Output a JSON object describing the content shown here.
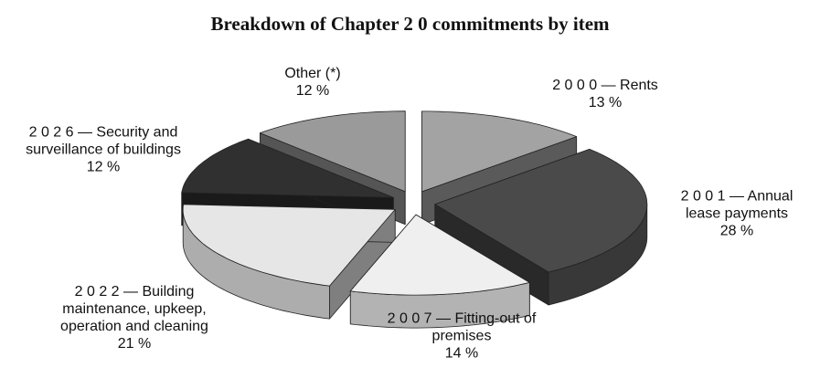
{
  "chart_data": {
    "type": "pie3d",
    "title": "Breakdown of Chapter 2 0 commitments by item",
    "categories": [
      "2 0 0 0 — Rents",
      "2 0 0 1 — Annual lease payments",
      "2 0 0 7 — Fitting-out of premises",
      "2 0 2 2 — Building maintenance, upkeep, operation and cleaning",
      "2 0 2 6 — Security and surveillance of buildings",
      "Other (*)"
    ],
    "values": [
      13,
      28,
      14,
      21,
      12,
      12
    ],
    "value_labels": [
      "13 %",
      "28 %",
      "14 %",
      "21 %",
      "12 %",
      "12 %"
    ],
    "colors": [
      "#a3a3a3",
      "#4a4a4a",
      "#efefef",
      "#e6e6e6",
      "#303030",
      "#9a9a9a"
    ]
  }
}
